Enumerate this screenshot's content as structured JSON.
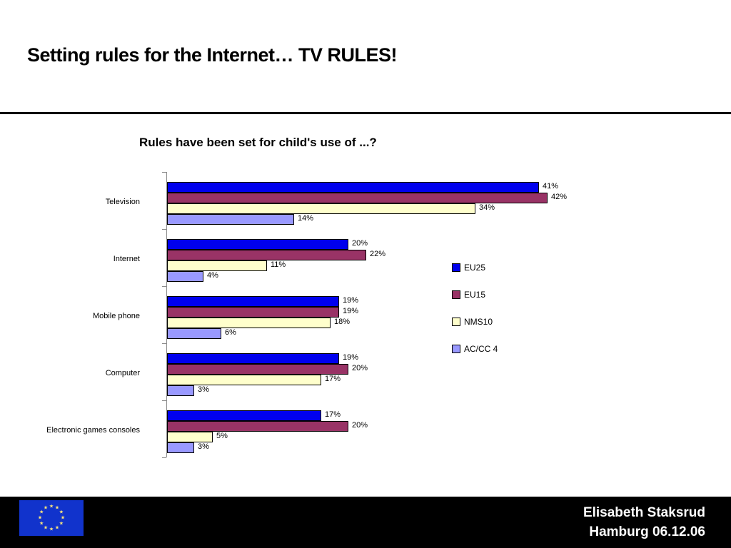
{
  "slide": {
    "title": "Setting rules for the Internet… TV RULES!",
    "footer": {
      "line1": "Elisabeth Staksrud",
      "line2": "Hamburg 06.12.06"
    }
  },
  "flag": {
    "description": "eu-flag",
    "star_count": 12,
    "blue": "#1133CC",
    "star_color": "#FFE87C",
    "star_glyph": "★"
  },
  "chart_data": {
    "type": "bar",
    "orientation": "horizontal",
    "title": "Rules have been set for child's use of ...?",
    "categories": [
      "Television",
      "Internet",
      "Mobile phone",
      "Computer",
      "Electronic games consoles"
    ],
    "series": [
      {
        "name": "EU25",
        "color": "#0000EE",
        "values": [
          41,
          20,
          19,
          19,
          17
        ]
      },
      {
        "name": "EU15",
        "color": "#993366",
        "values": [
          42,
          22,
          19,
          20,
          20
        ]
      },
      {
        "name": "NMS10",
        "color": "#FFFFCC",
        "values": [
          34,
          11,
          18,
          17,
          5
        ]
      },
      {
        "name": "AC/CC 4",
        "color": "#9999FF",
        "values": [
          14,
          4,
          6,
          3,
          3
        ]
      }
    ],
    "value_suffix": "%",
    "xlim": [
      0,
      45
    ],
    "grid": false,
    "legend_position": "right",
    "data_labels": true
  }
}
